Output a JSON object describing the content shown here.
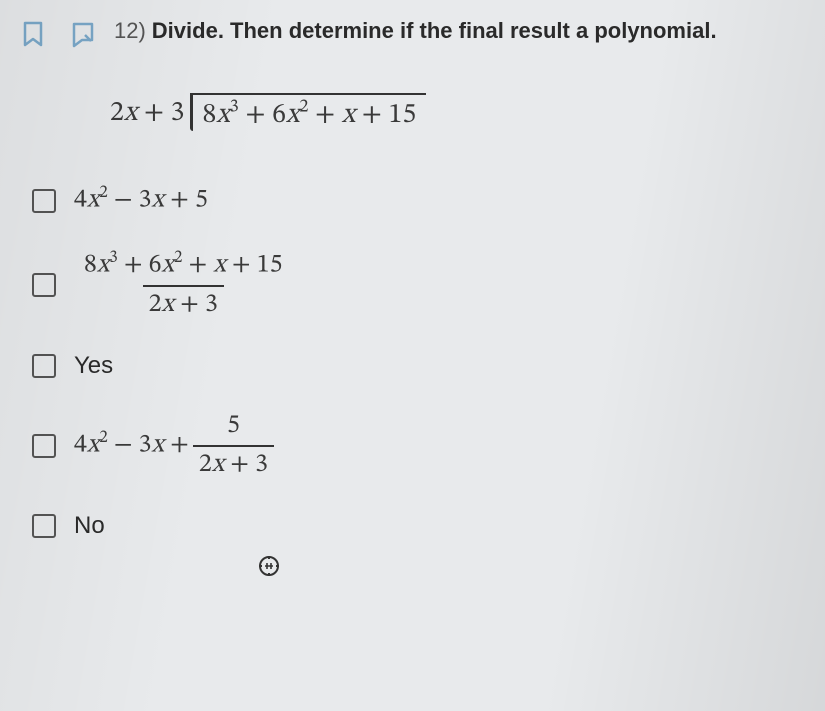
{
  "question": {
    "number": "12)",
    "prompt": "Divide. Then determine if the final result a polynomial."
  },
  "division": {
    "divisor": "2x + 3",
    "dividend": "8x³ + 6x² + x + 15"
  },
  "options": [
    {
      "type": "math",
      "value": "4x² − 3x + 5"
    },
    {
      "type": "fraction",
      "numerator": "8x³ + 6x² + x + 15",
      "denominator": "2x + 3"
    },
    {
      "type": "text",
      "value": "Yes"
    },
    {
      "type": "mixed",
      "prefix": "4x² − 3x + ",
      "frac_num": "5",
      "frac_den": "2x + 3"
    },
    {
      "type": "text",
      "value": "No"
    }
  ],
  "icons": {
    "bookmark_color": "#7aa8c9",
    "notebox_color": "#7aa8c9"
  },
  "colors": {
    "background": "#e8eaec",
    "text": "#3a3a3a",
    "border": "#555"
  }
}
